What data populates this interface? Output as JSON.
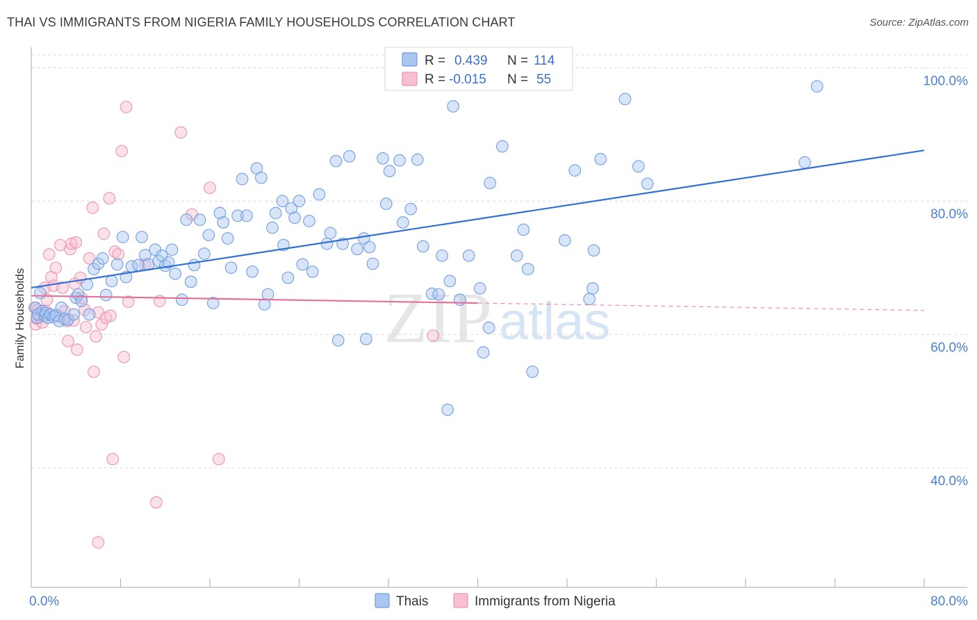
{
  "title": "THAI VS IMMIGRANTS FROM NIGERIA FAMILY HOUSEHOLDS CORRELATION CHART",
  "source": "Source: ZipAtlas.com",
  "watermark": {
    "zip": "ZIP",
    "atlas": "atlas"
  },
  "colors": {
    "thai_fill": "#a9c6f0",
    "thai_stroke": "#6f9ee0",
    "thai_line": "#2f6fd6",
    "nigeria_fill": "#f7bfcf",
    "nigeria_stroke": "#ee93ae",
    "nigeria_line": "#e4719a",
    "tick": "#4a7fd4",
    "grid": "#d9d9d9"
  },
  "legend": {
    "row1": {
      "r_label": "R =",
      "r_value": "0.439",
      "n_label": "N =",
      "n_value": "114"
    },
    "row2": {
      "r_label": "R =",
      "r_value": "-0.015",
      "n_label": "N =",
      "n_value": "55"
    }
  },
  "chart_data": {
    "type": "scatter",
    "title": "THAI VS IMMIGRANTS FROM NIGERIA FAMILY HOUSEHOLDS CORRELATION CHART",
    "xlabel": "",
    "ylabel": "Family Households",
    "xlim": [
      0,
      80
    ],
    "ylim": [
      22,
      102
    ],
    "x_tick_labels": [
      "0.0%",
      "80.0%"
    ],
    "y_ticks": [
      40,
      60,
      80,
      100
    ],
    "y_tick_labels": [
      "40.0%",
      "60.0%",
      "80.0%",
      "100.0%"
    ],
    "series": [
      {
        "name": "Thais",
        "trend": {
          "x0": 0,
          "y0": 67.0,
          "x1": 80,
          "y1": 87.6,
          "dashed_from": null
        },
        "points": [
          [
            0.4,
            64.0
          ],
          [
            0.5,
            62.5
          ],
          [
            0.6,
            63.0
          ],
          [
            0.8,
            66.2
          ],
          [
            1.0,
            63.5
          ],
          [
            1.2,
            62.8
          ],
          [
            1.3,
            63.2
          ],
          [
            1.5,
            62.5
          ],
          [
            1.7,
            63.0
          ],
          [
            2.0,
            62.6
          ],
          [
            2.2,
            62.9
          ],
          [
            2.5,
            62.0
          ],
          [
            2.7,
            64.0
          ],
          [
            3.0,
            62.3
          ],
          [
            3.3,
            62.2
          ],
          [
            3.8,
            63.0
          ],
          [
            4.0,
            65.5
          ],
          [
            4.2,
            66.0
          ],
          [
            4.5,
            65.0
          ],
          [
            5.0,
            67.5
          ],
          [
            5.2,
            63.0
          ],
          [
            5.6,
            69.8
          ],
          [
            6.0,
            70.6
          ],
          [
            6.4,
            71.4
          ],
          [
            6.7,
            65.9
          ],
          [
            7.2,
            68.0
          ],
          [
            7.7,
            70.5
          ],
          [
            8.2,
            74.6
          ],
          [
            8.5,
            68.6
          ],
          [
            9.0,
            70.2
          ],
          [
            9.6,
            70.4
          ],
          [
            9.9,
            74.6
          ],
          [
            10.2,
            71.9
          ],
          [
            10.5,
            70.5
          ],
          [
            11.1,
            72.7
          ],
          [
            11.4,
            71.0
          ],
          [
            11.7,
            71.8
          ],
          [
            12.0,
            70.3
          ],
          [
            12.3,
            70.8
          ],
          [
            12.6,
            72.7
          ],
          [
            12.9,
            69.1
          ],
          [
            13.5,
            65.2
          ],
          [
            13.9,
            77.2
          ],
          [
            14.3,
            67.9
          ],
          [
            14.6,
            70.4
          ],
          [
            15.1,
            77.2
          ],
          [
            15.5,
            72.1
          ],
          [
            15.9,
            74.9
          ],
          [
            16.3,
            64.7
          ],
          [
            16.9,
            78.2
          ],
          [
            17.2,
            76.8
          ],
          [
            17.6,
            74.4
          ],
          [
            17.9,
            70.0
          ],
          [
            18.5,
            77.8
          ],
          [
            18.9,
            83.3
          ],
          [
            19.3,
            77.8
          ],
          [
            19.8,
            69.4
          ],
          [
            20.2,
            84.9
          ],
          [
            20.6,
            83.5
          ],
          [
            20.9,
            64.5
          ],
          [
            21.2,
            66.0
          ],
          [
            21.6,
            76.0
          ],
          [
            21.9,
            78.2
          ],
          [
            22.5,
            80.0
          ],
          [
            22.6,
            73.4
          ],
          [
            23.0,
            68.5
          ],
          [
            23.3,
            78.9
          ],
          [
            23.6,
            77.5
          ],
          [
            24.0,
            80.0
          ],
          [
            24.3,
            70.5
          ],
          [
            24.9,
            77.0
          ],
          [
            25.2,
            69.4
          ],
          [
            25.8,
            81.0
          ],
          [
            26.5,
            73.6
          ],
          [
            26.8,
            75.2
          ],
          [
            27.3,
            86.0
          ],
          [
            27.5,
            59.1
          ],
          [
            27.9,
            73.6
          ],
          [
            28.5,
            86.7
          ],
          [
            29.2,
            72.8
          ],
          [
            29.8,
            74.4
          ],
          [
            30.0,
            59.3
          ],
          [
            30.3,
            73.1
          ],
          [
            30.6,
            70.6
          ],
          [
            31.5,
            86.4
          ],
          [
            31.8,
            79.6
          ],
          [
            32.1,
            84.5
          ],
          [
            33.0,
            86.1
          ],
          [
            33.3,
            76.8
          ],
          [
            34.0,
            78.8
          ],
          [
            34.6,
            86.2
          ],
          [
            35.1,
            73.2
          ],
          [
            35.9,
            66.1
          ],
          [
            36.5,
            66.0
          ],
          [
            36.8,
            71.8
          ],
          [
            37.3,
            48.7
          ],
          [
            37.5,
            68.0
          ],
          [
            37.8,
            94.2
          ],
          [
            38.4,
            65.2
          ],
          [
            39.2,
            71.8
          ],
          [
            40.2,
            66.9
          ],
          [
            40.5,
            57.3
          ],
          [
            41.0,
            61.0
          ],
          [
            41.1,
            82.7
          ],
          [
            42.2,
            88.2
          ],
          [
            43.5,
            71.8
          ],
          [
            44.1,
            75.7
          ],
          [
            44.5,
            69.8
          ],
          [
            44.9,
            54.4
          ],
          [
            47.8,
            74.1
          ],
          [
            48.7,
            84.6
          ],
          [
            50.0,
            65.3
          ],
          [
            50.3,
            66.9
          ],
          [
            50.4,
            72.6
          ],
          [
            51.0,
            86.3
          ],
          [
            53.2,
            95.3
          ],
          [
            54.4,
            85.2
          ],
          [
            55.2,
            82.6
          ],
          [
            69.3,
            85.8
          ],
          [
            70.4,
            97.2
          ]
        ]
      },
      {
        "name": "Immigrants from Nigeria",
        "trend": {
          "x0": 0,
          "y0": 65.8,
          "x1": 80,
          "y1": 63.6,
          "dashed_from": 40.0
        },
        "points": [
          [
            0.3,
            64.0
          ],
          [
            0.4,
            61.5
          ],
          [
            0.5,
            62.4
          ],
          [
            0.6,
            63.7
          ],
          [
            0.8,
            62.5
          ],
          [
            1.0,
            61.8
          ],
          [
            1.2,
            67.0
          ],
          [
            1.3,
            63.5
          ],
          [
            1.4,
            65.2
          ],
          [
            1.6,
            72.0
          ],
          [
            1.8,
            68.6
          ],
          [
            2.0,
            67.3
          ],
          [
            2.2,
            70.0
          ],
          [
            2.5,
            62.7
          ],
          [
            2.6,
            73.4
          ],
          [
            2.8,
            67.0
          ],
          [
            3.0,
            63.5
          ],
          [
            3.2,
            62.0
          ],
          [
            3.3,
            59.0
          ],
          [
            3.5,
            72.8
          ],
          [
            3.6,
            73.6
          ],
          [
            3.9,
            67.6
          ],
          [
            4.0,
            73.8
          ],
          [
            4.1,
            57.7
          ],
          [
            4.4,
            68.5
          ],
          [
            4.5,
            65.5
          ],
          [
            4.8,
            63.7
          ],
          [
            4.9,
            61.1
          ],
          [
            5.2,
            71.4
          ],
          [
            5.5,
            79.0
          ],
          [
            5.6,
            54.4
          ],
          [
            5.8,
            59.7
          ],
          [
            6.0,
            63.3
          ],
          [
            6.3,
            61.5
          ],
          [
            6.5,
            75.1
          ],
          [
            6.7,
            62.5
          ],
          [
            7.0,
            80.4
          ],
          [
            7.1,
            62.8
          ],
          [
            7.3,
            41.3
          ],
          [
            7.5,
            72.4
          ],
          [
            7.8,
            72.0
          ],
          [
            8.1,
            87.5
          ],
          [
            8.3,
            56.6
          ],
          [
            8.5,
            94.1
          ],
          [
            8.7,
            64.9
          ],
          [
            10.2,
            70.5
          ],
          [
            11.2,
            34.8
          ],
          [
            11.5,
            65.0
          ],
          [
            13.4,
            90.3
          ],
          [
            14.4,
            78.0
          ],
          [
            16.0,
            82.0
          ],
          [
            16.8,
            41.3
          ],
          [
            36.0,
            59.8
          ],
          [
            6.0,
            28.8
          ],
          [
            3.8,
            62.1
          ]
        ]
      }
    ]
  },
  "bottom_legend": {
    "thais": "Thais",
    "nigeria": "Immigrants from Nigeria"
  }
}
